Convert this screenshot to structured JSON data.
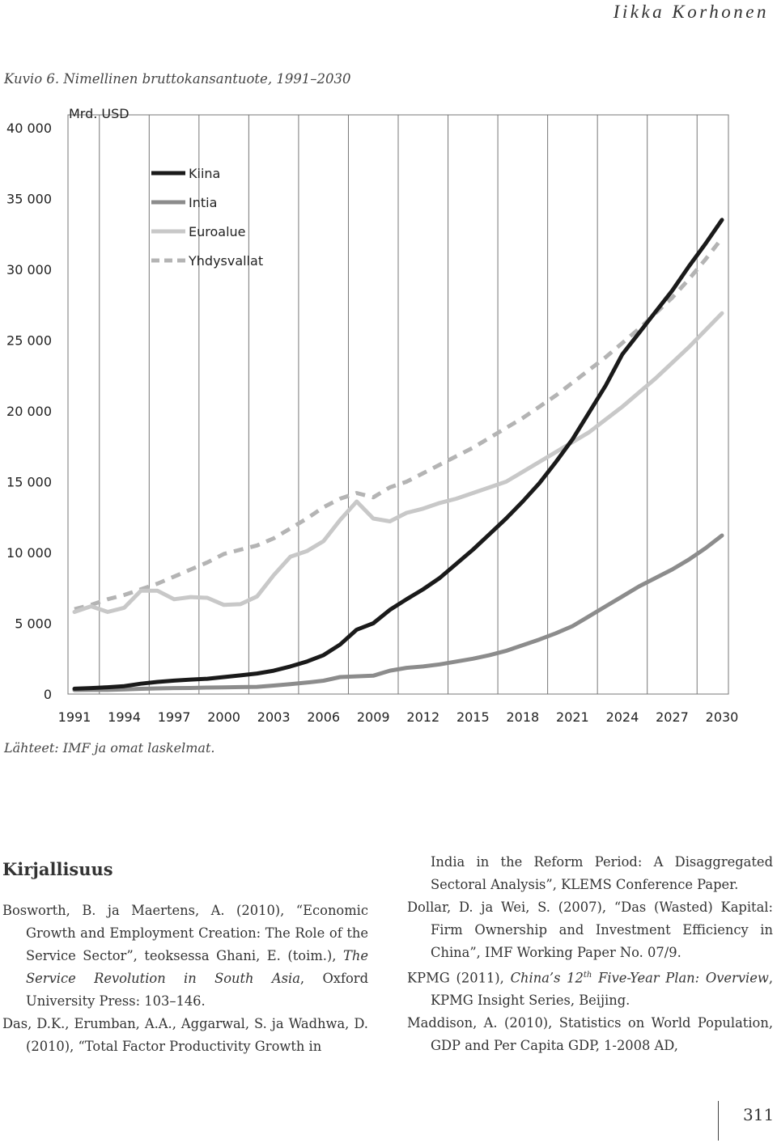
{
  "header": {
    "author": "Iikka Korhonen"
  },
  "figure": {
    "caption": "Kuvio 6. Nimellinen bruttokansantuote, 1991–2030",
    "source": "Lähteet: IMF ja omat laskelmat."
  },
  "chart_data": {
    "type": "line",
    "title": "",
    "unit_label": "Mrd. USD",
    "xlabel": "",
    "ylabel": "",
    "xlim": [
      1991,
      2030
    ],
    "ylim": [
      0,
      40000
    ],
    "x_ticks": [
      "1991",
      "1994",
      "1997",
      "2000",
      "2003",
      "2006",
      "2009",
      "2012",
      "2015",
      "2018",
      "2021",
      "2024",
      "2027",
      "2030"
    ],
    "y_ticks": [
      "0",
      "5 000",
      "10 000",
      "15 000",
      "20 000",
      "25 000",
      "30 000",
      "35 000",
      "40 000"
    ],
    "grid": "vertical",
    "legend_position": "top-left",
    "x": [
      1991,
      1992,
      1993,
      1994,
      1995,
      1996,
      1997,
      1998,
      1999,
      2000,
      2001,
      2002,
      2003,
      2004,
      2005,
      2006,
      2007,
      2008,
      2009,
      2010,
      2011,
      2012,
      2013,
      2014,
      2015,
      2016,
      2017,
      2018,
      2019,
      2020,
      2021,
      2022,
      2023,
      2024,
      2025,
      2026,
      2027,
      2028,
      2029,
      2030
    ],
    "series": [
      {
        "name": "Kiina",
        "color": "#1a1a1a",
        "style": "solid",
        "values": [
          380,
          420,
          480,
          560,
          730,
          860,
          950,
          1020,
          1080,
          1200,
          1320,
          1450,
          1650,
          1950,
          2300,
          2750,
          3500,
          4550,
          5000,
          5950,
          6700,
          7400,
          8200,
          9200,
          10200,
          11300,
          12400,
          13600,
          14900,
          16400,
          18000,
          19900,
          21800,
          24000,
          25500,
          27000,
          28500,
          30200,
          31800,
          33500
        ]
      },
      {
        "name": "Intia",
        "color": "#8c8c8c",
        "style": "solid",
        "values": [
          280,
          290,
          290,
          330,
          370,
          400,
          420,
          430,
          460,
          470,
          490,
          510,
          600,
          700,
          810,
          940,
          1200,
          1250,
          1300,
          1650,
          1850,
          1950,
          2100,
          2300,
          2500,
          2750,
          3050,
          3450,
          3850,
          4300,
          4800,
          5500,
          6200,
          6900,
          7600,
          8200,
          8800,
          9500,
          10300,
          11200
        ]
      },
      {
        "name": "Euroalue",
        "color": "#c8c8c8",
        "style": "solid",
        "values": [
          5800,
          6200,
          5800,
          6100,
          7300,
          7300,
          6700,
          6850,
          6800,
          6300,
          6350,
          6900,
          8400,
          9700,
          10100,
          10800,
          12300,
          13600,
          12400,
          12200,
          12800,
          13100,
          13500,
          13800,
          14200,
          14600,
          15000,
          15700,
          16400,
          17100,
          17800,
          18500,
          19400,
          20300,
          21300,
          22300,
          23400,
          24500,
          25700,
          26900
        ]
      },
      {
        "name": "Yhdysvallat",
        "color": "#b4b4b4",
        "style": "dashed",
        "values": [
          6000,
          6300,
          6700,
          7000,
          7400,
          7800,
          8300,
          8800,
          9300,
          9900,
          10200,
          10500,
          11000,
          11700,
          12400,
          13200,
          13800,
          14200,
          13900,
          14600,
          15000,
          15600,
          16200,
          16800,
          17400,
          18100,
          18800,
          19500,
          20300,
          21100,
          22000,
          22900,
          23800,
          24800,
          25800,
          26900,
          28000,
          29300,
          30700,
          32200
        ]
      }
    ]
  },
  "references": {
    "heading": "Kirjallisuus",
    "left": [
      {
        "segments": [
          {
            "text": "Bosworth, B. ja Maertens, A. (2010), “Economic Growth and Employment Creation: The Role of the Service Sector”, teoksessa Ghani, E. (toim.), "
          },
          {
            "text": "The Service Revolution in South Asia",
            "italic": true
          },
          {
            "text": ", Oxford University Press: 103–146."
          }
        ]
      },
      {
        "segments": [
          {
            "text": "Das, D.K., Erumban, A.A., Aggarwal, S. ja Wadhwa, D. (2010), “Total Factor Productivity Growth in"
          }
        ]
      }
    ],
    "right_continuation": "India in the Reform Period: A Disaggregated Sectoral Analysis”, KLEMS Conference Paper.",
    "right": [
      {
        "segments": [
          {
            "text": "Dollar, D. ja Wei, S. (2007), “Das (Wasted) Kapital: Firm Ownership and Investment Efficiency in China”, IMF Working Paper No. 07/9."
          }
        ]
      },
      {
        "segments": [
          {
            "text": "KPMG (2011), "
          },
          {
            "text": "China’s 12",
            "italic": true
          },
          {
            "text": "th",
            "sup": true
          },
          {
            "text": " Five-Year Plan: Overview",
            "italic": true
          },
          {
            "text": ", KPMG Insight Series, Beijing."
          }
        ]
      },
      {
        "segments": [
          {
            "text": "Maddison, A. (2010), Statistics on World Population, GDP and Per Capita GDP, 1-2008 AD,"
          }
        ]
      }
    ]
  },
  "footer": {
    "page_number": "311"
  }
}
